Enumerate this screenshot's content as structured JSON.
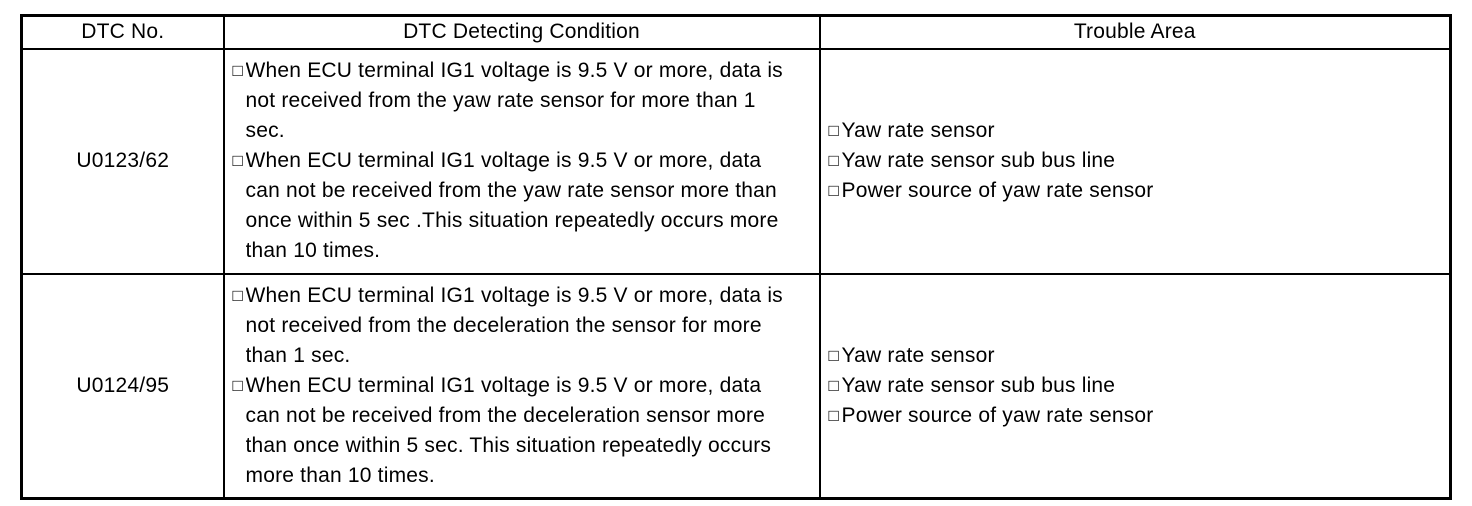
{
  "colors": {
    "text": "#000000",
    "border": "#000000",
    "background": "#ffffff"
  },
  "table": {
    "bullet_glyph": "□",
    "headers": {
      "dtc_no": "DTC No.",
      "detecting_condition": "DTC Detecting Condition",
      "trouble_area": "Trouble Area"
    },
    "rows": [
      {
        "dtc_no": "U0123/62",
        "conditions": [
          "When ECU terminal IG1 voltage is 9.5 V or more, data is\nnot received from the yaw rate sensor for more than 1\nsec.",
          "When ECU terminal IG1 voltage is 9.5 V or more, data\ncan not be received from the yaw rate sensor more than\nonce within 5 sec .This situation repeatedly occurs more\nthan 10 times."
        ],
        "trouble_areas": [
          "Yaw rate sensor",
          "Yaw rate sensor sub bus line",
          "Power source of yaw rate sensor"
        ]
      },
      {
        "dtc_no": "U0124/95",
        "conditions": [
          "When ECU terminal IG1 voltage is 9.5 V or more, data is\nnot received from the deceleration the sensor for more\nthan 1 sec.",
          "When ECU terminal IG1 voltage is 9.5 V or more, data\ncan not be received from the deceleration sensor more\nthan once within 5 sec. This situation repeatedly occurs\nmore than 10 times."
        ],
        "trouble_areas": [
          "Yaw rate sensor",
          "Yaw rate sensor sub bus line",
          "Power source of yaw rate sensor"
        ]
      }
    ]
  }
}
